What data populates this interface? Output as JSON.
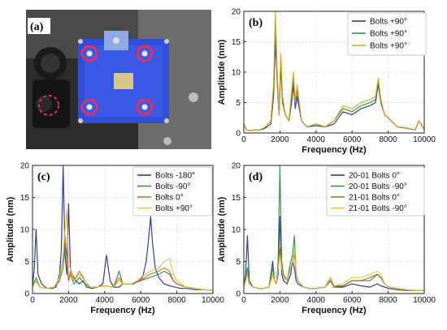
{
  "photo_panel": {
    "letter": "(a)",
    "description_icon": "blue-mount-photo-icon"
  },
  "chart_data": [
    {
      "panel": "(b)",
      "type": "line",
      "xlabel": "Frequency (Hz)",
      "ylabel": "Amplitude (nm)",
      "xlim": [
        0,
        10000
      ],
      "ylim": [
        0,
        20
      ],
      "xticks": [
        0,
        2000,
        4000,
        6000,
        8000,
        10000
      ],
      "yticks": [
        0,
        5,
        10,
        15,
        20
      ],
      "grid": true,
      "legend": "top-right",
      "series": [
        {
          "name": "Bolts +90°",
          "color": "#1f2a8a",
          "x": [
            0,
            150,
            300,
            600,
            900,
            1200,
            1500,
            1650,
            1750,
            1850,
            1950,
            2050,
            2150,
            2300,
            2500,
            2650,
            2750,
            2850,
            2950,
            3200,
            3500,
            4000,
            4500,
            5000,
            5500,
            6000,
            6500,
            7000,
            7300,
            7450,
            7600,
            7800,
            8000,
            8500,
            9000,
            9500,
            9700,
            10000
          ],
          "y": [
            1.5,
            0.5,
            0.4,
            0.5,
            0.5,
            0.8,
            1.5,
            6,
            15,
            9,
            3,
            11,
            5,
            3,
            2,
            5,
            8,
            4,
            6,
            2,
            1,
            1.2,
            1,
            1.5,
            3.5,
            3,
            4,
            4.5,
            5,
            8,
            5,
            3,
            2.5,
            1,
            0.8,
            0.5,
            2,
            0.6
          ]
        },
        {
          "name": "Bolts +90°",
          "color": "#2e8b3a",
          "x": [
            0,
            150,
            300,
            600,
            900,
            1200,
            1500,
            1650,
            1750,
            1850,
            1950,
            2050,
            2150,
            2300,
            2500,
            2650,
            2750,
            2850,
            2950,
            3200,
            3500,
            4000,
            4500,
            5000,
            5500,
            6000,
            6500,
            7000,
            7300,
            7450,
            7600,
            7800,
            8000,
            8500,
            9000,
            9500,
            9700,
            10000
          ],
          "y": [
            1.5,
            0.5,
            0.4,
            0.5,
            0.5,
            1,
            2,
            7,
            18,
            8,
            3,
            12,
            5,
            3,
            2,
            6,
            9,
            5,
            7,
            2,
            1,
            1.5,
            1,
            2,
            4,
            3.5,
            4.5,
            5,
            5.5,
            8.5,
            5,
            3,
            2.5,
            1,
            0.8,
            0.5,
            2,
            0.6
          ]
        },
        {
          "name": "Bolts +90°",
          "color": "#e0a020",
          "x": [
            0,
            150,
            300,
            600,
            900,
            1200,
            1500,
            1650,
            1750,
            1850,
            1950,
            2050,
            2150,
            2300,
            2500,
            2650,
            2750,
            2850,
            2950,
            3200,
            3500,
            4000,
            4500,
            5000,
            5500,
            6000,
            6500,
            7000,
            7300,
            7450,
            7600,
            7800,
            8000,
            8500,
            9000,
            9500,
            9700,
            10000
          ],
          "y": [
            1.5,
            0.5,
            0.4,
            0.5,
            0.5,
            1,
            2,
            8,
            20,
            10,
            3,
            13,
            6,
            3,
            2,
            7,
            10,
            5,
            8,
            2,
            1,
            1.5,
            1,
            2,
            4.5,
            4,
            5,
            5.5,
            6,
            9,
            5.5,
            3,
            2.5,
            1,
            0.8,
            0.5,
            2,
            0.6
          ]
        }
      ]
    },
    {
      "panel": "(c)",
      "type": "line",
      "xlabel": "Frequency (Hz)",
      "ylabel": "Amplitude (nm)",
      "xlim": [
        0,
        10000
      ],
      "ylim": [
        0,
        20
      ],
      "xticks": [
        0,
        2000,
        4000,
        6000,
        8000,
        10000
      ],
      "yticks": [
        0,
        5,
        10,
        15,
        20
      ],
      "grid": true,
      "legend": "top-right",
      "series": [
        {
          "name": "Bolts -180°",
          "color": "#1f2a8a",
          "x": [
            0,
            100,
            200,
            300,
            500,
            800,
            1100,
            1300,
            1500,
            1600,
            1700,
            1800,
            1900,
            2000,
            2100,
            2200,
            2400,
            2600,
            2800,
            3000,
            3300,
            3600,
            3900,
            4100,
            4300,
            4500,
            4800,
            5000,
            5300,
            5600,
            5900,
            6100,
            6300,
            6450,
            6550,
            6650,
            6800,
            7000,
            7300,
            7600,
            7900,
            8200,
            8600,
            9000,
            9500,
            10000
          ],
          "y": [
            1,
            4,
            10,
            3,
            1.5,
            0.8,
            0.8,
            1,
            3,
            7,
            20,
            6,
            3,
            14,
            4,
            3,
            2,
            1.5,
            2,
            1,
            0.8,
            1,
            1.5,
            6,
            2,
            1,
            1,
            1.5,
            1.5,
            1.5,
            2,
            2.5,
            5,
            9,
            12,
            8,
            4,
            2.5,
            1.5,
            1.2,
            1,
            0.8,
            0.8,
            0.6,
            0.6,
            0.5
          ]
        },
        {
          "name": "Bolts -90°",
          "color": "#2e8b3a",
          "x": [
            0,
            200,
            400,
            800,
            1200,
            1500,
            1700,
            1800,
            1900,
            2000,
            2100,
            2300,
            2600,
            2900,
            3200,
            3500,
            4000,
            4500,
            4800,
            5000,
            5500,
            6000,
            6500,
            7000,
            7300,
            7600,
            7800,
            8000,
            8500,
            9000,
            9500,
            10000
          ],
          "y": [
            1,
            2.5,
            1,
            0.8,
            1,
            2,
            4,
            8,
            6,
            2,
            3,
            1.5,
            2.5,
            1.5,
            1,
            1,
            1.2,
            1,
            3.5,
            1.5,
            1.5,
            2,
            2.5,
            3,
            3.5,
            3,
            2,
            1.5,
            1,
            0.8,
            0.6,
            0.5
          ]
        },
        {
          "name": "Bolts 0°",
          "color": "#c96a1e",
          "x": [
            0,
            200,
            400,
            800,
            1200,
            1500,
            1700,
            1800,
            1900,
            2000,
            2100,
            2300,
            2600,
            2900,
            3200,
            3500,
            4000,
            4500,
            4800,
            5000,
            5500,
            6000,
            6500,
            7000,
            7300,
            7600,
            7800,
            8000,
            8500,
            9000,
            9500,
            10000
          ],
          "y": [
            1,
            2,
            1,
            0.8,
            1,
            2,
            6,
            9,
            5,
            2,
            3.5,
            2,
            3.5,
            2,
            1,
            1,
            1.2,
            1,
            2.5,
            1.5,
            1.5,
            2,
            3,
            3.5,
            4,
            3.5,
            2,
            1.5,
            1,
            0.8,
            0.6,
            0.5
          ]
        },
        {
          "name": "Bolts +90°",
          "color": "#e6c040",
          "x": [
            0,
            200,
            400,
            800,
            1200,
            1500,
            1700,
            1800,
            1900,
            2000,
            2100,
            2300,
            2600,
            2900,
            3200,
            3500,
            4000,
            4500,
            4800,
            5000,
            5500,
            6000,
            6500,
            7000,
            7300,
            7600,
            7800,
            8000,
            8500,
            9000,
            9500,
            10000
          ],
          "y": [
            1,
            2,
            1,
            0.8,
            1,
            2.5,
            6,
            10,
            13,
            4,
            4,
            2,
            3,
            2,
            1,
            1,
            1.2,
            1,
            2,
            1.5,
            1.5,
            2.5,
            3.5,
            4,
            5,
            5.5,
            3,
            2,
            1,
            0.8,
            0.6,
            0.5
          ]
        }
      ]
    },
    {
      "panel": "(d)",
      "type": "line",
      "xlabel": "Frequency (Hz)",
      "ylabel": "Amplitude (nm)",
      "xlim": [
        0,
        10000
      ],
      "ylim": [
        0,
        20
      ],
      "xticks": [
        0,
        2000,
        4000,
        6000,
        8000,
        10000
      ],
      "yticks": [
        0,
        5,
        10,
        15,
        20
      ],
      "grid": true,
      "legend": "top-right",
      "series": [
        {
          "name": "20-01 Bolts 0°",
          "color": "#1f2a8a",
          "x": [
            0,
            100,
            200,
            300,
            500,
            800,
            1100,
            1400,
            1600,
            1700,
            1800,
            1900,
            2000,
            2100,
            2200,
            2400,
            2600,
            2700,
            2800,
            2900,
            3000,
            3300,
            3600,
            4000,
            4500,
            4800,
            5000,
            5500,
            6000,
            6500,
            7000,
            7400,
            7600,
            7800,
            8000,
            8500,
            9000,
            9500,
            10000
          ],
          "y": [
            1,
            3,
            9,
            2,
            1,
            0.8,
            0.8,
            1,
            5,
            2,
            1.5,
            3,
            12,
            3,
            2,
            1.5,
            3,
            5,
            4,
            2,
            1.5,
            1,
            0.8,
            0.8,
            1,
            2,
            1,
            1,
            1.5,
            1.2,
            1,
            1.5,
            1.2,
            1,
            0.8,
            0.6,
            0.5,
            0.5,
            0.5
          ]
        },
        {
          "name": "20-01 Bolts -90°",
          "color": "#2e8b3a",
          "x": [
            0,
            100,
            200,
            300,
            500,
            800,
            1100,
            1400,
            1600,
            1700,
            1800,
            1900,
            2000,
            2100,
            2200,
            2400,
            2600,
            2700,
            2800,
            2900,
            3000,
            3300,
            3600,
            4000,
            4500,
            4800,
            5000,
            5500,
            6000,
            6500,
            7000,
            7400,
            7600,
            7800,
            8000,
            8500,
            9000,
            9500,
            10000
          ],
          "y": [
            1,
            2,
            4,
            1.5,
            1,
            0.8,
            0.8,
            1,
            4,
            2,
            1.5,
            5,
            20,
            5,
            3,
            2,
            5,
            6,
            9,
            3,
            2,
            1,
            0.8,
            0.8,
            1,
            2.5,
            1.2,
            1.2,
            2,
            2,
            2,
            3,
            2.5,
            1.5,
            1,
            0.8,
            0.6,
            0.5,
            0.5
          ]
        },
        {
          "name": "21-01 Bolts 0°",
          "color": "#a06a1e",
          "x": [
            0,
            100,
            200,
            300,
            500,
            800,
            1100,
            1400,
            1600,
            1700,
            1800,
            1900,
            2000,
            2100,
            2200,
            2400,
            2600,
            2700,
            2800,
            2900,
            3000,
            3300,
            3600,
            4000,
            4500,
            4800,
            5000,
            5500,
            6000,
            6500,
            7000,
            7400,
            7600,
            7800,
            8000,
            8500,
            9000,
            9500,
            10000
          ],
          "y": [
            1,
            2,
            3,
            1.5,
            1,
            0.8,
            0.8,
            1,
            3,
            2,
            1.5,
            4,
            7,
            4,
            2.5,
            2,
            4,
            5,
            6,
            3,
            2,
            1,
            0.8,
            0.8,
            1,
            2,
            1,
            1.2,
            2,
            2,
            2.5,
            3,
            2.5,
            1.5,
            1,
            0.8,
            0.6,
            0.5,
            0.5
          ]
        },
        {
          "name": "21-01 Bolts -90°",
          "color": "#e6c040",
          "x": [
            0,
            100,
            200,
            300,
            500,
            800,
            1100,
            1400,
            1600,
            1700,
            1800,
            1900,
            2000,
            2100,
            2200,
            2400,
            2600,
            2700,
            2800,
            2900,
            3000,
            3300,
            3600,
            4000,
            4500,
            4800,
            5000,
            5500,
            6000,
            6500,
            7000,
            7400,
            7600,
            7800,
            8000,
            8500,
            9000,
            9500,
            10000
          ],
          "y": [
            1,
            2,
            3,
            1.5,
            1,
            0.8,
            0.8,
            1,
            3,
            2,
            1.5,
            4,
            6,
            4,
            2.5,
            2,
            4,
            5,
            7,
            3,
            2,
            1,
            0.8,
            0.8,
            1,
            2.5,
            1.2,
            1.5,
            2.5,
            2.5,
            3,
            3.5,
            3,
            1.5,
            1,
            0.8,
            0.6,
            0.5,
            0.5
          ]
        }
      ]
    }
  ]
}
